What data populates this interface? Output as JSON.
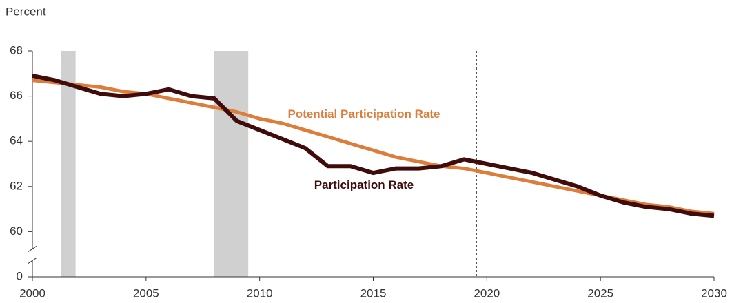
{
  "chart_data": {
    "type": "line",
    "y_axis_label": "Percent",
    "x": [
      2000,
      2001,
      2002,
      2003,
      2004,
      2005,
      2006,
      2007,
      2008,
      2009,
      2010,
      2011,
      2012,
      2013,
      2014,
      2015,
      2016,
      2017,
      2018,
      2019,
      2020,
      2021,
      2022,
      2023,
      2024,
      2025,
      2026,
      2027,
      2028,
      2029,
      2030
    ],
    "series": [
      {
        "name": "Potential Participation Rate",
        "color": "#dd7d3a",
        "values": [
          66.7,
          66.6,
          66.5,
          66.4,
          66.2,
          66.1,
          65.9,
          65.7,
          65.5,
          65.3,
          65.0,
          64.8,
          64.5,
          64.2,
          63.9,
          63.6,
          63.3,
          63.1,
          62.9,
          62.8,
          62.6,
          62.4,
          62.2,
          62.0,
          61.8,
          61.6,
          61.4,
          61.2,
          61.1,
          60.9,
          60.8
        ]
      },
      {
        "name": "Participation Rate",
        "color": "#3f0b0b",
        "values": [
          66.9,
          66.7,
          66.4,
          66.1,
          66.0,
          66.1,
          66.3,
          66.0,
          65.9,
          64.9,
          64.5,
          64.1,
          63.7,
          62.9,
          62.9,
          62.6,
          62.8,
          62.8,
          62.9,
          63.2,
          63.0,
          62.8,
          62.6,
          62.3,
          62.0,
          61.6,
          61.3,
          61.1,
          61.0,
          60.8,
          60.7
        ]
      }
    ],
    "recessions": [
      [
        2001.25,
        2001.9
      ],
      [
        2007.98,
        2009.5
      ]
    ],
    "projection_start": 2019.55,
    "xlim": [
      2000,
      2030
    ],
    "xticks": [
      2000,
      2005,
      2010,
      2015,
      2020,
      2025,
      2030
    ],
    "ylim": [
      0,
      68
    ],
    "yticks": [
      0,
      60,
      62,
      64,
      66,
      68
    ],
    "axis_break": true,
    "grid": false
  }
}
